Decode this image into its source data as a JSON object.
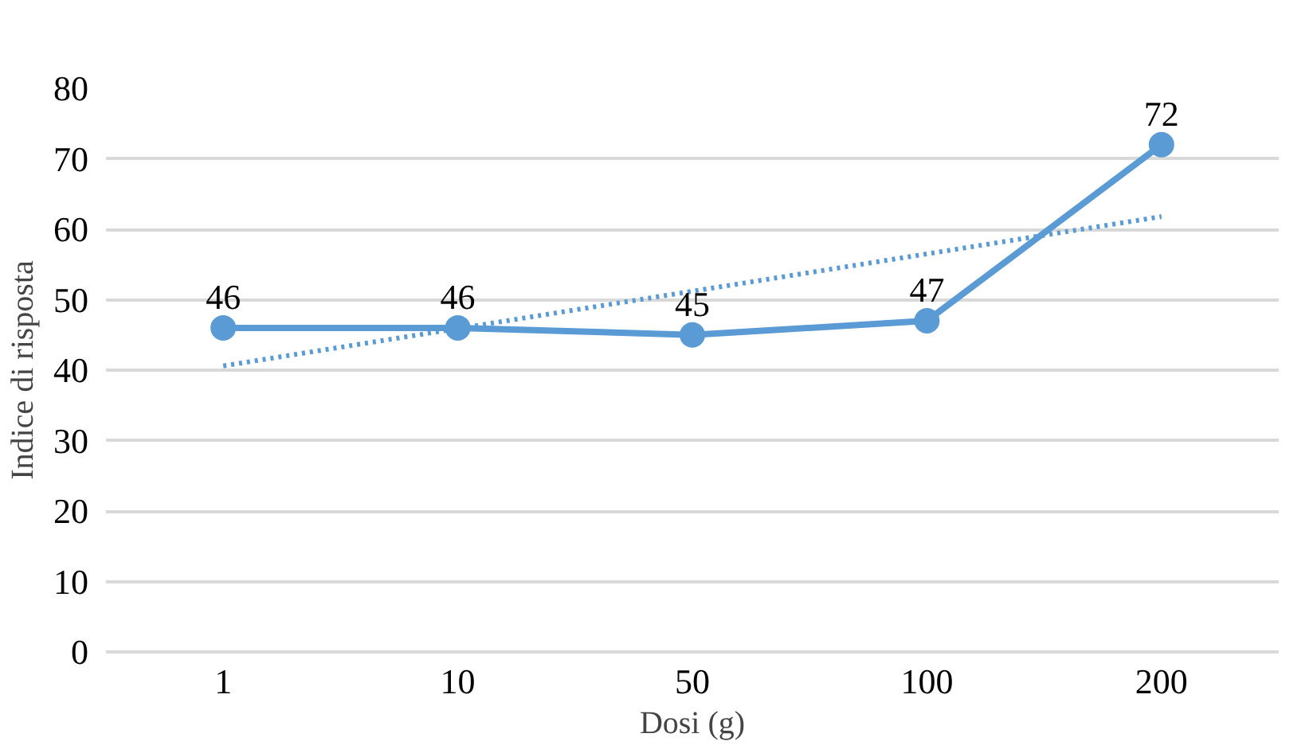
{
  "chart_data": {
    "type": "line",
    "xlabel": "Dosi (g)",
    "ylabel": "Indice di risposta",
    "categories": [
      "1",
      "10",
      "50",
      "100",
      "200"
    ],
    "series": [
      {
        "color": "#5b9bd5",
        "values": [
          46,
          46,
          45,
          47,
          72
        ],
        "value_labels": [
          "46",
          "46",
          "45",
          "47",
          "72"
        ],
        "marker": "circle",
        "line_style": "solid"
      },
      {
        "color": "#5b9bd5",
        "values": [
          40.6,
          45.9,
          51.2,
          56.5,
          61.8
        ],
        "marker": "none",
        "line_style": "dotted"
      }
    ],
    "ylim": [
      0,
      80
    ],
    "yticks": [
      0,
      10,
      20,
      30,
      40,
      50,
      60,
      70,
      80
    ],
    "grid": "y"
  }
}
